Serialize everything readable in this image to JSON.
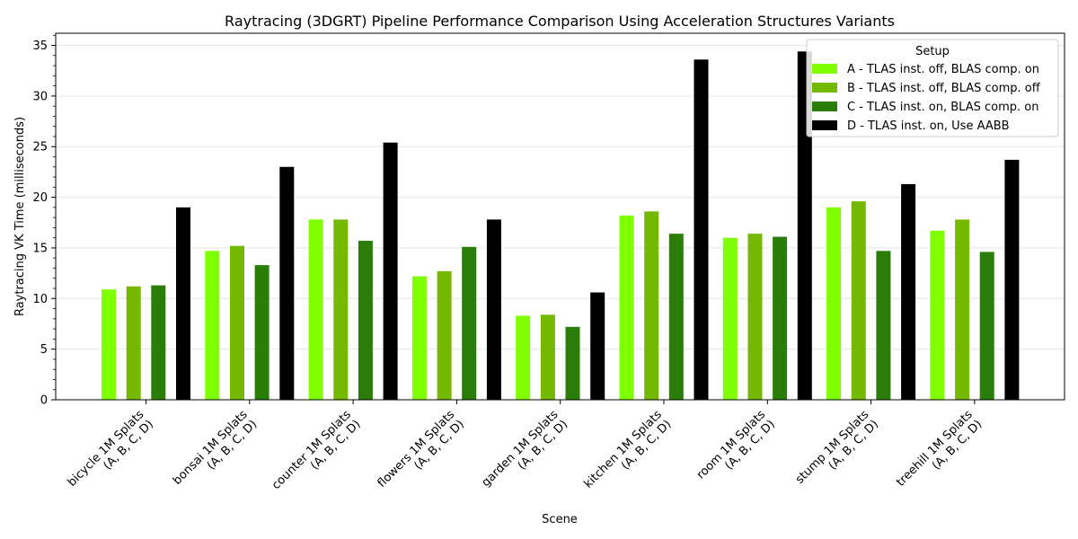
{
  "chart_data": {
    "type": "bar",
    "title": "Raytracing (3DGRT) Pipeline Performance Comparison Using Acceleration Structures Variants",
    "xlabel": "Scene",
    "ylabel": "Raytracing VK Time (milliseconds)",
    "ylim": [
      0,
      36.2
    ],
    "yticks": [
      0,
      5,
      10,
      15,
      20,
      25,
      30,
      35
    ],
    "grid": "horizontal",
    "legend_title": "Setup",
    "legend_position": "top-right",
    "categories": [
      [
        "bicycle 1M Splats",
        "(A, B, C, D)"
      ],
      [
        "bonsai 1M Splats",
        "(A, B, C, D)"
      ],
      [
        "counter 1M Splats",
        "(A, B, C, D)"
      ],
      [
        "flowers 1M Splats",
        "(A, B, C, D)"
      ],
      [
        "garden 1M Splats",
        "(A, B, C, D)"
      ],
      [
        "kitchen 1M Splats",
        "(A, B, C, D)"
      ],
      [
        "room 1M Splats",
        "(A, B, C, D)"
      ],
      [
        "stump 1M Splats",
        "(A, B, C, D)"
      ],
      [
        "treehill 1M Splats",
        "(A, B, C, D)"
      ]
    ],
    "series": [
      {
        "name": "A - TLAS inst. off, BLAS comp. on",
        "color": "#7fff00",
        "values": [
          10.9,
          14.7,
          17.8,
          12.2,
          8.3,
          18.2,
          16.0,
          19.0,
          16.7
        ]
      },
      {
        "name": "B - TLAS inst. off, BLAS comp. off",
        "color": "#74b900",
        "values": [
          11.2,
          15.2,
          17.8,
          12.7,
          8.4,
          18.6,
          16.4,
          19.6,
          17.8
        ]
      },
      {
        "name": "C - TLAS inst. on, BLAS comp. on",
        "color": "#2b7d09",
        "values": [
          11.3,
          13.3,
          15.7,
          15.1,
          7.2,
          16.4,
          16.1,
          14.7,
          14.6
        ]
      },
      {
        "name": "D - TLAS inst. on, Use AABB",
        "color": "#000000",
        "values": [
          19.0,
          23.0,
          25.4,
          17.8,
          10.6,
          33.6,
          34.4,
          21.3,
          23.7
        ]
      }
    ]
  }
}
